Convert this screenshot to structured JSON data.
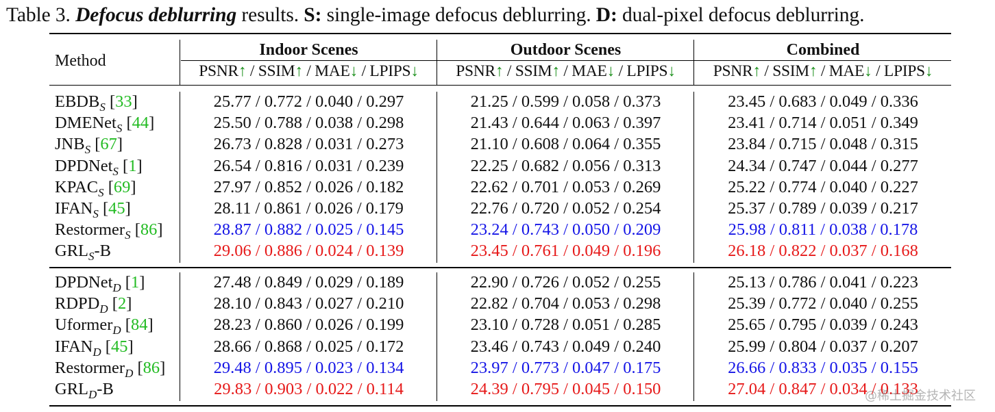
{
  "caption": {
    "prefix": "Table 3. ",
    "title": "Defocus deblurring",
    "rest1": " results. ",
    "s_key": "S:",
    "s_text": " single-image defocus deblurring. ",
    "d_key": "D:",
    "d_text": " dual-pixel defocus deblurring."
  },
  "header": {
    "method": "Method",
    "groups": [
      "Indoor Scenes",
      "Outdoor Scenes",
      "Combined"
    ],
    "metrics": {
      "psnr": "PSNR",
      "ssim": "SSIM",
      "mae": "MAE",
      "lpips": "LPIPS",
      "up": "↑",
      "down": "↓",
      "sep": " / "
    }
  },
  "single_rows": [
    {
      "name": "EBDB",
      "sub": "S",
      "ref": "33",
      "suffix": "",
      "indoor": "25.77 / 0.772 / 0.040 / 0.297",
      "outdoor": "21.25 / 0.599 / 0.058 / 0.373",
      "combined": "23.45 / 0.683 / 0.049 / 0.336",
      "rank": ""
    },
    {
      "name": "DMENet",
      "sub": "S",
      "ref": "44",
      "suffix": "",
      "indoor": "25.50 / 0.788 / 0.038 / 0.298",
      "outdoor": "21.43 / 0.644 / 0.063 / 0.397",
      "combined": "23.41 / 0.714 / 0.051 / 0.349",
      "rank": ""
    },
    {
      "name": "JNB",
      "sub": "S",
      "ref": "67",
      "suffix": "",
      "indoor": "26.73 / 0.828 / 0.031 / 0.273",
      "outdoor": "21.10 / 0.608 / 0.064 / 0.355",
      "combined": "23.84 / 0.715 / 0.048 / 0.315",
      "rank": ""
    },
    {
      "name": "DPDNet",
      "sub": "S",
      "ref": "1",
      "suffix": "",
      "indoor": "26.54 / 0.816 / 0.031 / 0.239",
      "outdoor": "22.25 / 0.682 / 0.056 / 0.313",
      "combined": "24.34 / 0.747 / 0.044 / 0.277",
      "rank": ""
    },
    {
      "name": "KPAC",
      "sub": "S",
      "ref": "69",
      "suffix": "",
      "indoor": "27.97 / 0.852 / 0.026 / 0.182",
      "outdoor": "22.62 / 0.701 / 0.053 / 0.269",
      "combined": "25.22 / 0.774 / 0.040 / 0.227",
      "rank": ""
    },
    {
      "name": "IFAN",
      "sub": "S",
      "ref": "45",
      "suffix": "",
      "indoor": "28.11 / 0.861 / 0.026 / 0.179",
      "outdoor": "22.76 / 0.720 / 0.052 / 0.254",
      "combined": "25.37 / 0.789 / 0.039 / 0.217",
      "rank": ""
    },
    {
      "name": "Restormer",
      "sub": "S",
      "ref": "86",
      "suffix": "",
      "indoor": "28.87 / 0.882 / 0.025 / 0.145",
      "outdoor": "23.24 / 0.743 / 0.050 / 0.209",
      "combined": "25.98 / 0.811 / 0.038 / 0.178",
      "rank": "second"
    },
    {
      "name": "GRL",
      "sub": "S",
      "ref": "",
      "suffix": "-B",
      "indoor": "29.06 / 0.886 / 0.024 / 0.139",
      "outdoor": "23.45 / 0.761 / 0.049 / 0.196",
      "combined": "26.18 / 0.822 / 0.037 / 0.168",
      "rank": "best"
    }
  ],
  "dual_rows": [
    {
      "name": "DPDNet",
      "sub": "D",
      "ref": "1",
      "suffix": "",
      "indoor": "27.48 / 0.849 / 0.029 / 0.189",
      "outdoor": "22.90 / 0.726 / 0.052 / 0.255",
      "combined": "25.13 / 0.786 / 0.041 / 0.223",
      "rank": ""
    },
    {
      "name": "RDPD",
      "sub": "D",
      "ref": "2",
      "suffix": "",
      "indoor": "28.10 / 0.843 / 0.027 / 0.210",
      "outdoor": "22.82 / 0.704 / 0.053 / 0.298",
      "combined": "25.39 / 0.772 / 0.040 / 0.255",
      "rank": ""
    },
    {
      "name": "Uformer",
      "sub": "D",
      "ref": "84",
      "suffix": "",
      "indoor": "28.23 / 0.860 / 0.026 / 0.199",
      "outdoor": "23.10 / 0.728 / 0.051 / 0.285",
      "combined": "25.65 / 0.795 / 0.039 / 0.243",
      "rank": ""
    },
    {
      "name": "IFAN",
      "sub": "D",
      "ref": "45",
      "suffix": "",
      "indoor": "28.66 / 0.868 / 0.025 / 0.172",
      "outdoor": "23.46 / 0.743 / 0.049 / 0.240",
      "combined": "25.99 / 0.804 / 0.037 / 0.207",
      "rank": ""
    },
    {
      "name": "Restormer",
      "sub": "D",
      "ref": "86",
      "suffix": "",
      "indoor": "29.48 / 0.895 / 0.023 / 0.134",
      "outdoor": "23.97 / 0.773 / 0.047 / 0.175",
      "combined": "26.66 / 0.833 / 0.035 / 0.155",
      "rank": "second"
    },
    {
      "name": "GRL",
      "sub": "D",
      "ref": "",
      "suffix": "-B",
      "indoor": "29.83 / 0.903 / 0.022 / 0.114",
      "outdoor": "24.39 / 0.795 / 0.045 / 0.150",
      "combined": "27.04 / 0.847 / 0.034 / 0.133",
      "rank": "best"
    }
  ],
  "colors": {
    "best": "#e61919",
    "second": "#1515e6",
    "ref": "#22bb22",
    "arrow": "#1a8f1a"
  },
  "watermark": "@稀土掘金技术社区"
}
